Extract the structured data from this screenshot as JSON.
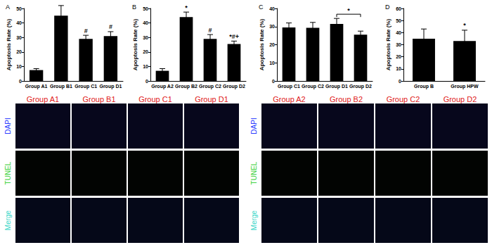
{
  "chart_data": [
    {
      "type": "bar",
      "panel": "A",
      "y_label": "Apoptosis Rate (%)",
      "categories": [
        "Group A1",
        "Group B1",
        "Group C1",
        "Group D1"
      ],
      "values": [
        7.5,
        45,
        29,
        31
      ],
      "errors": [
        1,
        7,
        2.5,
        3
      ],
      "color": "#000000",
      "ylim": [
        0,
        50
      ],
      "yticks": [
        0,
        10,
        20,
        30,
        40,
        50
      ],
      "grid": false,
      "annotations": [
        {
          "category": "Group C1",
          "text": "#"
        },
        {
          "category": "Group D1",
          "text": "#"
        }
      ]
    },
    {
      "type": "bar",
      "panel": "B",
      "y_label": "Apoptosis Rate (%)",
      "categories": [
        "Group A2",
        "Group B2",
        "Group C2",
        "Group D2"
      ],
      "values": [
        7,
        44,
        29,
        25.5
      ],
      "errors": [
        1.5,
        3.5,
        3,
        2
      ],
      "color": "#000000",
      "ylim": [
        0,
        50
      ],
      "yticks": [
        0,
        10,
        20,
        30,
        40,
        50
      ],
      "grid": false,
      "annotations": [
        {
          "category": "Group B2",
          "text": "*"
        },
        {
          "category": "Group C2",
          "text": "#"
        },
        {
          "category": "Group D2",
          "text": "*#+"
        }
      ]
    },
    {
      "type": "bar",
      "panel": "C",
      "y_label": "Apoptosis Rate (%)",
      "categories": [
        "Group C1",
        "Group C2",
        "Group D1",
        "Group D2"
      ],
      "values": [
        29.5,
        29.3,
        31.5,
        25.5
      ],
      "errors": [
        2.5,
        3,
        3,
        2
      ],
      "color": "#000000",
      "ylim": [
        0,
        40
      ],
      "yticks": [
        0,
        10,
        20,
        30,
        40
      ],
      "grid": false,
      "brackets": [
        {
          "from": "Group D1",
          "to": "Group D2",
          "text": "*"
        }
      ]
    },
    {
      "type": "bar",
      "panel": "D",
      "y_label": "Apoptosis Rate (%)",
      "categories": [
        "Group B",
        "Group HPW"
      ],
      "values": [
        35,
        33
      ],
      "errors": [
        8,
        9
      ],
      "color": "#000000",
      "ylim": [
        0,
        60
      ],
      "yticks": [
        0,
        10,
        20,
        30,
        40,
        50,
        60
      ],
      "grid": false,
      "annotations": [
        {
          "category": "Group HPW",
          "text": "*"
        }
      ]
    }
  ],
  "image_grids": [
    {
      "columns": [
        "Group A1",
        "Group B1",
        "Group C1",
        "Group D1"
      ],
      "rows": [
        "DAPI",
        "TUNEL",
        "Merge"
      ]
    },
    {
      "columns": [
        "Group A2",
        "Group B2",
        "Group C2",
        "Group D2"
      ],
      "rows": [
        "DAPI",
        "TUNEL",
        "Merge"
      ]
    }
  ]
}
